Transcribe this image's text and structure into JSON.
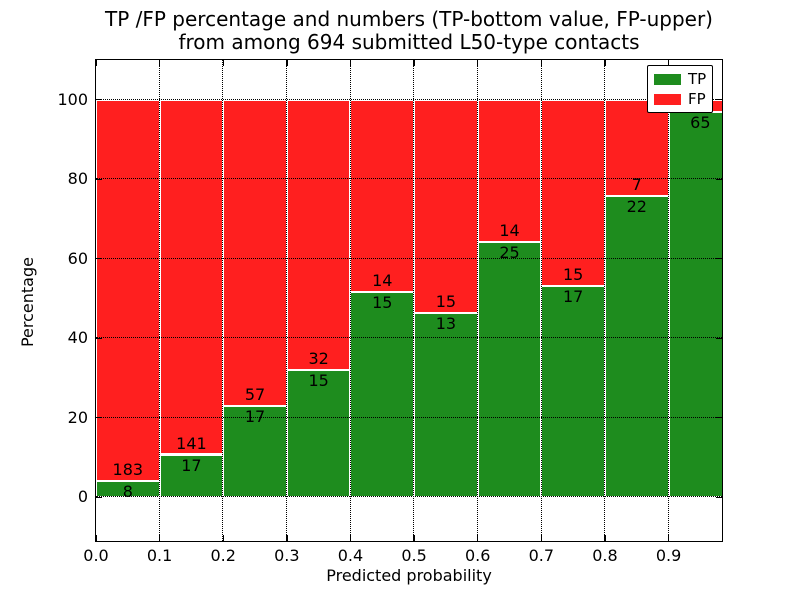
{
  "title": {
    "line1": "TP /FP percentage and numbers (TP-bottom value, FP-upper)",
    "line2": "from among 694 submitted L50-type contacts"
  },
  "chart_data": {
    "type": "bar",
    "stacked": true,
    "normalized_to_percent": true,
    "title": "TP /FP percentage and numbers (TP-bottom value, FP-upper)\nfrom among 694 submitted L50-type contacts",
    "xlabel": "Predicted probability",
    "ylabel": "Percentage",
    "total_contacts": 694,
    "bin_edges": [
      0.0,
      0.1,
      0.2,
      0.3,
      0.4,
      0.5,
      0.6,
      0.7,
      0.8,
      0.9,
      1.0
    ],
    "bin_width": 0.1,
    "categories": [
      "0.0-0.1",
      "0.1-0.2",
      "0.2-0.3",
      "0.3-0.4",
      "0.4-0.5",
      "0.5-0.6",
      "0.6-0.7",
      "0.7-0.8",
      "0.8-0.9",
      "0.9-1.0"
    ],
    "series": [
      {
        "name": "TP",
        "color": "#1e8c1e",
        "counts": [
          8,
          17,
          17,
          15,
          15,
          13,
          25,
          17,
          22,
          65
        ]
      },
      {
        "name": "FP",
        "color": "#ff1f1f",
        "counts": [
          183,
          141,
          57,
          32,
          14,
          15,
          14,
          15,
          7,
          2
        ]
      }
    ],
    "tp_percent": [
      4.2,
      10.8,
      23.0,
      31.9,
      51.7,
      46.4,
      64.1,
      53.1,
      75.9,
      97.0
    ],
    "label_placement": "TP count below segment boundary, FP count above segment boundary",
    "occluded_labels": [
      "FP count label of 0.9-1.0 bin hidden behind legend (value inferred from 694 total)"
    ],
    "xlim": [
      0.0,
      0.984
    ],
    "ylim": [
      -11,
      110
    ],
    "xticks": [
      "0.0",
      "0.1",
      "0.2",
      "0.3",
      "0.4",
      "0.5",
      "0.6",
      "0.7",
      "0.8",
      "0.9"
    ],
    "xtick_values": [
      0.0,
      0.1,
      0.2,
      0.3,
      0.4,
      0.5,
      0.6,
      0.7,
      0.8,
      0.9
    ],
    "yticks": [
      "0",
      "20",
      "40",
      "60",
      "80",
      "100"
    ],
    "ytick_values": [
      0,
      20,
      40,
      60,
      80,
      100
    ],
    "grid": "dotted both axes, drawn above bars",
    "bar_edge_color": "#ffffff",
    "legend": {
      "position": "upper right",
      "entries": [
        {
          "label": "TP",
          "color": "#1e8c1e"
        },
        {
          "label": "FP",
          "color": "#ff1f1f"
        }
      ]
    }
  }
}
